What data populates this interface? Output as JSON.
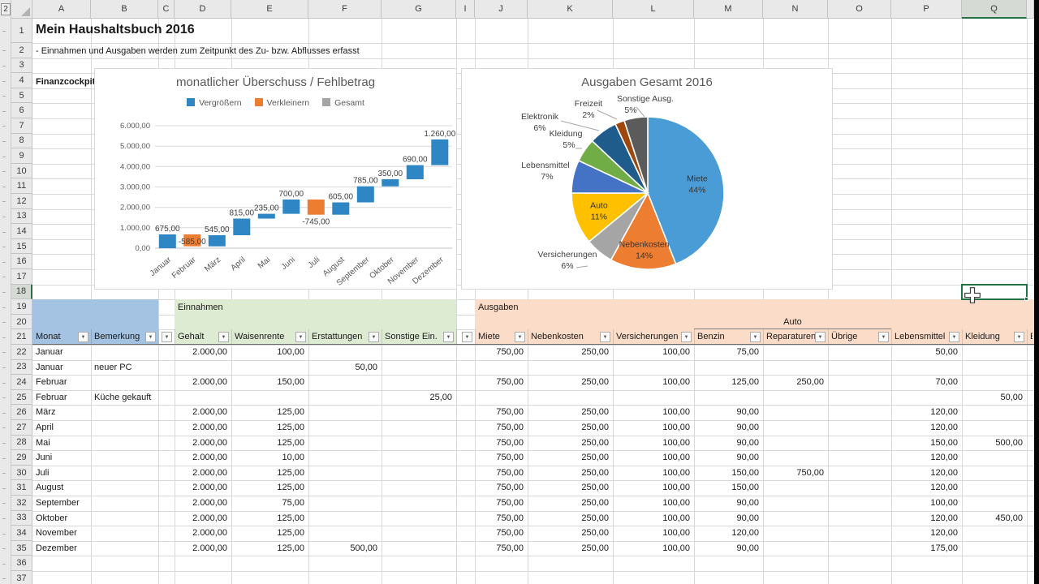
{
  "sheet": {
    "outline_level_button": "2",
    "column_letters": [
      "A",
      "B",
      "C",
      "D",
      "E",
      "F",
      "G",
      "I",
      "J",
      "K",
      "L",
      "M",
      "N",
      "O",
      "P",
      "Q"
    ],
    "row_count": 37,
    "selected_cell": "Q18",
    "selected_column": "Q",
    "selected_row": 18,
    "title": "Mein Haushaltsbuch 2016",
    "subtitle": "- Einnahmen und Ausgaben werden zum Zeitpunkt des Zu- bzw. Abflusses erfasst",
    "finanzcockpit_label": "Finanzcockpit"
  },
  "sections": {
    "einnahmen": "Einnahmen",
    "ausgaben": "Ausgaben",
    "auto": "Auto",
    "colors": {
      "monat_fill": "#A4C3E3",
      "einnahmen_fill": "#DDEBD2",
      "ausgaben_fill": "#FADCC8",
      "selection_green": "#217346"
    }
  },
  "table": {
    "header_row": 21,
    "headers": {
      "A": "Monat",
      "B": "Bemerkung",
      "C": "",
      "D": "Gehalt",
      "E": "Waisenrente",
      "F": "Erstattungen",
      "G": "Sonstige Ein.",
      "I": "",
      "J": "Miete",
      "K": "Nebenkosten",
      "L": "Versicherungen",
      "M": "Benzin",
      "N": "Reparaturen",
      "O": "Übrige",
      "P": "Lebensmittel",
      "Q": "Kleidung",
      "R": "Elektronik"
    },
    "rows": [
      {
        "row": 22,
        "cells": {
          "A": "Januar",
          "D": "2.000,00",
          "E": "100,00",
          "J": "750,00",
          "K": "250,00",
          "L": "100,00",
          "M": "75,00",
          "P": "50,00"
        }
      },
      {
        "row": 23,
        "cells": {
          "A": "Januar",
          "B": "neuer PC",
          "F": "50,00"
        }
      },
      {
        "row": 24,
        "cells": {
          "A": "Februar",
          "D": "2.000,00",
          "E": "150,00",
          "J": "750,00",
          "K": "250,00",
          "L": "100,00",
          "M": "125,00",
          "N": "250,00",
          "P": "70,00"
        }
      },
      {
        "row": 25,
        "cells": {
          "A": "Februar",
          "B": "Küche gekauft",
          "G": "25,00",
          "Q": "50,00"
        }
      },
      {
        "row": 26,
        "cells": {
          "A": "März",
          "D": "2.000,00",
          "E": "125,00",
          "J": "750,00",
          "K": "250,00",
          "L": "100,00",
          "M": "90,00",
          "P": "120,00"
        }
      },
      {
        "row": 27,
        "cells": {
          "A": "April",
          "D": "2.000,00",
          "E": "125,00",
          "J": "750,00",
          "K": "250,00",
          "L": "100,00",
          "M": "90,00",
          "P": "120,00"
        }
      },
      {
        "row": 28,
        "cells": {
          "A": "Mai",
          "D": "2.000,00",
          "E": "125,00",
          "J": "750,00",
          "K": "250,00",
          "L": "100,00",
          "M": "90,00",
          "P": "150,00",
          "Q": "500,00"
        }
      },
      {
        "row": 29,
        "cells": {
          "A": "Juni",
          "D": "2.000,00",
          "E": "10,00",
          "J": "750,00",
          "K": "250,00",
          "L": "100,00",
          "M": "90,00",
          "P": "120,00"
        }
      },
      {
        "row": 30,
        "cells": {
          "A": "Juli",
          "D": "2.000,00",
          "E": "125,00",
          "J": "750,00",
          "K": "250,00",
          "L": "100,00",
          "M": "150,00",
          "N": "750,00",
          "P": "120,00"
        }
      },
      {
        "row": 31,
        "cells": {
          "A": "August",
          "D": "2.000,00",
          "E": "125,00",
          "J": "750,00",
          "K": "250,00",
          "L": "100,00",
          "M": "150,00",
          "P": "120,00"
        }
      },
      {
        "row": 32,
        "cells": {
          "A": "September",
          "D": "2.000,00",
          "E": "75,00",
          "J": "750,00",
          "K": "250,00",
          "L": "100,00",
          "M": "90,00",
          "P": "100,00"
        }
      },
      {
        "row": 33,
        "cells": {
          "A": "Oktober",
          "D": "2.000,00",
          "E": "125,00",
          "J": "750,00",
          "K": "250,00",
          "L": "100,00",
          "M": "90,00",
          "P": "120,00",
          "Q": "450,00"
        }
      },
      {
        "row": 34,
        "cells": {
          "A": "November",
          "D": "2.000,00",
          "E": "125,00",
          "J": "750,00",
          "K": "250,00",
          "L": "100,00",
          "M": "120,00",
          "P": "120,00"
        }
      },
      {
        "row": 35,
        "cells": {
          "A": "Dezember",
          "D": "2.000,00",
          "E": "125,00",
          "F": "500,00",
          "J": "750,00",
          "K": "250,00",
          "L": "100,00",
          "M": "90,00",
          "P": "175,00"
        }
      }
    ]
  },
  "chart_data": [
    {
      "type": "bar",
      "subtype": "waterfall",
      "title": "monatlicher Überschuss / Fehlbetrag",
      "categories": [
        "Januar",
        "Februar",
        "März",
        "April",
        "Mai",
        "Juni",
        "Juli",
        "August",
        "September",
        "Oktober",
        "November",
        "Dezember"
      ],
      "values": [
        675,
        -585,
        545,
        815,
        235,
        700,
        -745,
        605,
        785,
        350,
        690,
        1260
      ],
      "value_labels": [
        "675,00",
        "-585,00",
        "545,00",
        "815,00",
        "235,00",
        "700,00",
        "-745,00",
        "605,00",
        "785,00",
        "350,00",
        "690,00",
        "1.260,00"
      ],
      "legend": [
        {
          "label": "Vergrößern",
          "color": "#2E86C4"
        },
        {
          "label": "Verkleinern",
          "color": "#ED7D31"
        },
        {
          "label": "Gesamt",
          "color": "#A5A5A5"
        }
      ],
      "legend_position": "top",
      "xlabel": "",
      "ylabel": "",
      "ylim": [
        0,
        6000
      ],
      "ytick_labels": [
        "0,00",
        "1.000,00",
        "2.000,00",
        "3.000,00",
        "4.000,00",
        "5.000,00",
        "6.000,00"
      ],
      "grid": true
    },
    {
      "type": "pie",
      "title": "Ausgaben Gesamt 2016",
      "slices": [
        {
          "label": "Miete",
          "pct": 44,
          "color": "#4A9CD6",
          "label_placement": "inside"
        },
        {
          "label": "Nebenkosten",
          "pct": 14,
          "color": "#ED7D31",
          "label_placement": "inside"
        },
        {
          "label": "Versicherungen",
          "pct": 6,
          "color": "#A5A5A5",
          "label_placement": "outside"
        },
        {
          "label": "Auto",
          "pct": 11,
          "color": "#FFC000",
          "label_placement": "inside"
        },
        {
          "label": "Lebensmittel",
          "pct": 7,
          "color": "#4472C4",
          "label_placement": "outside"
        },
        {
          "label": "Kleidung",
          "pct": 5,
          "color": "#70AD47",
          "label_placement": "outside"
        },
        {
          "label": "Elektronik",
          "pct": 6,
          "color": "#1F5C8B",
          "label_placement": "outside"
        },
        {
          "label": "Freizeit",
          "pct": 2,
          "color": "#9E480E",
          "label_placement": "outside"
        },
        {
          "label": "Sonstige Ausg.",
          "pct": 5,
          "color": "#5B5B5B",
          "label_placement": "outside"
        }
      ]
    }
  ]
}
